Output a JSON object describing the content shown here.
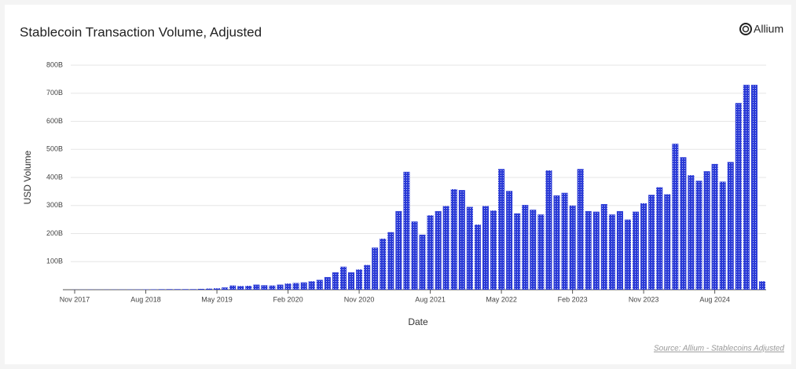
{
  "chart_data": {
    "type": "bar",
    "title": "Stablecoin Transaction Volume, Adjusted",
    "brand": "Allium",
    "source": "Source: Allium - Stablecoins Adjusted",
    "x_label": "Date",
    "y_label": "USD Volume",
    "color": "#2b3bd6",
    "grid": true,
    "ylim": [
      0,
      800
    ],
    "yticks": [
      {
        "value": 100,
        "label": "100B"
      },
      {
        "value": 200,
        "label": "200B"
      },
      {
        "value": 300,
        "label": "300B"
      },
      {
        "value": 400,
        "label": "400B"
      },
      {
        "value": 500,
        "label": "500B"
      },
      {
        "value": 600,
        "label": "600B"
      },
      {
        "value": 700,
        "label": "700B"
      },
      {
        "value": 800,
        "label": "800B"
      }
    ],
    "categories": [
      "Nov 2017",
      null,
      null,
      null,
      null,
      null,
      null,
      null,
      null,
      "Aug 2018",
      null,
      null,
      null,
      null,
      null,
      null,
      null,
      null,
      "May 2019",
      null,
      null,
      null,
      null,
      null,
      null,
      null,
      null,
      "Feb 2020",
      null,
      null,
      null,
      null,
      null,
      null,
      null,
      null,
      "Nov 2020",
      null,
      null,
      null,
      null,
      null,
      null,
      null,
      null,
      "Aug 2021",
      null,
      null,
      null,
      null,
      null,
      null,
      null,
      null,
      "May 2022",
      null,
      null,
      null,
      null,
      null,
      null,
      null,
      null,
      "Feb 2023",
      null,
      null,
      null,
      null,
      null,
      null,
      null,
      null,
      "Nov 2023",
      null,
      null,
      null,
      null,
      null,
      null,
      null,
      null,
      "Aug 2024",
      null,
      null,
      null,
      null,
      null,
      null
    ],
    "values": [
      0.3,
      0.5,
      0.6,
      0.5,
      0.6,
      0.7,
      0.8,
      0.9,
      1,
      1.2,
      1.5,
      1.8,
      2,
      2,
      2,
      2,
      3,
      4,
      5,
      8,
      15,
      13,
      14,
      18,
      16,
      15,
      18,
      22,
      24,
      26,
      30,
      35,
      45,
      62,
      82,
      62,
      72,
      88,
      150,
      182,
      205,
      280,
      420,
      243,
      196,
      265,
      280,
      298,
      358,
      355,
      295,
      232,
      298,
      282,
      430,
      352,
      272,
      302,
      285,
      268,
      425,
      336,
      345,
      300,
      430,
      280,
      278,
      305,
      268,
      280,
      250,
      278,
      308,
      338,
      365,
      340,
      520,
      472,
      408,
      388,
      422,
      448,
      385,
      455,
      665,
      730,
      730,
      30
    ]
  }
}
